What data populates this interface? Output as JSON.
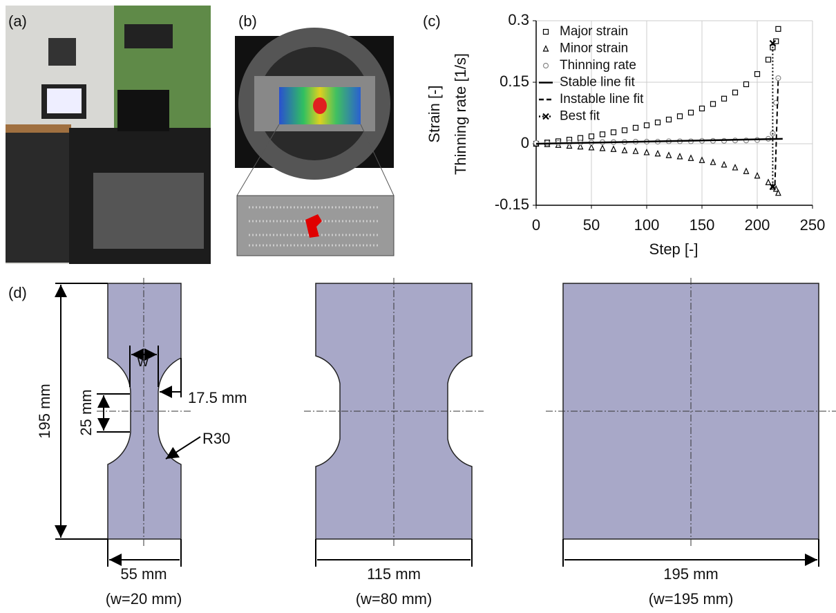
{
  "panels": {
    "a": "(a)",
    "b": "(b)",
    "c": "(c)",
    "d": "(d)"
  },
  "chart_data": {
    "type": "scatter",
    "x_label": "Step [-]",
    "y_label": [
      "Strain [-]",
      "Thinning rate [1/s]"
    ],
    "xlim": [
      0,
      250
    ],
    "xticks": [
      0,
      50,
      100,
      150,
      200,
      250
    ],
    "ylim": [
      -0.15,
      0.3
    ],
    "yticks": [
      -0.15,
      0,
      0.15,
      0.3
    ],
    "grid": true,
    "legend": "upper left",
    "series": [
      {
        "name": "Major strain",
        "color": "#000000",
        "marker": "square",
        "line_style": "none",
        "x": [
          0,
          10,
          20,
          30,
          40,
          50,
          60,
          70,
          80,
          90,
          100,
          110,
          120,
          130,
          140,
          150,
          160,
          170,
          180,
          190,
          200,
          210,
          214,
          217,
          219
        ],
        "values": [
          0,
          0.003,
          0.006,
          0.01,
          0.014,
          0.018,
          0.023,
          0.028,
          0.033,
          0.039,
          0.045,
          0.052,
          0.059,
          0.067,
          0.076,
          0.086,
          0.097,
          0.11,
          0.125,
          0.145,
          0.17,
          0.205,
          0.235,
          0.25,
          0.28
        ]
      },
      {
        "name": "Minor strain",
        "color": "#000000",
        "marker": "triangle",
        "line_style": "none",
        "x": [
          0,
          10,
          20,
          30,
          40,
          50,
          60,
          70,
          80,
          90,
          100,
          110,
          120,
          130,
          140,
          150,
          160,
          170,
          180,
          190,
          200,
          210,
          214,
          217,
          219
        ],
        "values": [
          0,
          -0.001,
          -0.003,
          -0.005,
          -0.007,
          -0.009,
          -0.011,
          -0.013,
          -0.016,
          -0.018,
          -0.021,
          -0.024,
          -0.028,
          -0.031,
          -0.035,
          -0.04,
          -0.045,
          -0.051,
          -0.058,
          -0.067,
          -0.078,
          -0.094,
          -0.105,
          -0.11,
          -0.12
        ]
      },
      {
        "name": "Thinning rate",
        "color": "#888888",
        "marker": "circle",
        "line_style": "none",
        "x": [
          0,
          10,
          20,
          30,
          40,
          50,
          60,
          70,
          80,
          90,
          100,
          110,
          120,
          130,
          140,
          150,
          160,
          170,
          180,
          190,
          200,
          210,
          214,
          217,
          219
        ],
        "values": [
          0.002,
          0.002,
          0.002,
          0.003,
          0.003,
          0.003,
          0.004,
          0.004,
          0.004,
          0.005,
          0.005,
          0.005,
          0.006,
          0.006,
          0.006,
          0.007,
          0.007,
          0.007,
          0.008,
          0.008,
          0.009,
          0.012,
          0.025,
          0.1,
          0.16
        ]
      },
      {
        "name": "Stable line fit",
        "color": "#000000",
        "marker": "none",
        "line_style": "solid",
        "x": [
          0,
          223
        ],
        "values": [
          0,
          0.012
        ]
      },
      {
        "name": "Instable line fit",
        "color": "#000000",
        "marker": "none",
        "line_style": "dashed",
        "x": [
          216,
          219
        ],
        "values": [
          -0.1,
          0.16
        ]
      },
      {
        "name": "Best fit",
        "color": "#000000",
        "marker": "x",
        "line_style": "dotted",
        "x": [
          214,
          214
        ],
        "values": [
          0.245,
          -0.105
        ]
      }
    ]
  },
  "diagram": {
    "height_dim": "195 mm",
    "w_label": "w",
    "notch_depth": "17.5 mm",
    "neck_length": "25 mm",
    "radius": "R30",
    "specimens": [
      {
        "width": "55 mm",
        "w": "(w=20 mm)"
      },
      {
        "width": "115 mm",
        "w": "(w=80 mm)"
      },
      {
        "width": "195 mm",
        "w": "(w=195 mm)"
      }
    ]
  }
}
